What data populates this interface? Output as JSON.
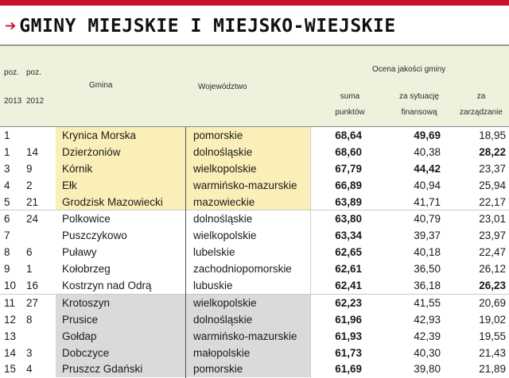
{
  "title": "GMINY MIEJSKIE I MIEJSKO-WIEJSKIE",
  "header": {
    "poz_a": "poz.",
    "poz_b": "poz.",
    "year_2013": "2013",
    "year_2012": "2012",
    "gmina": "Gmina",
    "wojewodztwo": "Województwo",
    "ocena": "Ocena jakości gminy",
    "suma_1": "suma",
    "suma_2": "punktów",
    "fin_1": "za sytuację",
    "fin_2": "finansową",
    "zarz_1": "za",
    "zarz_2": "zarządzanie"
  },
  "rows": [
    {
      "p13": "1",
      "p12": "",
      "gmina": "Krynica Morska",
      "woj": "pomorskie",
      "suma": "68,64",
      "fin": "49,69",
      "zarz": "18,95",
      "fin_bold": true,
      "zarz_bold": false,
      "band": "yellow"
    },
    {
      "p13": "1",
      "p12": "14",
      "gmina": "Dzierżoniów",
      "woj": "dolnośląskie",
      "suma": "68,60",
      "fin": "40,38",
      "zarz": "28,22",
      "fin_bold": false,
      "zarz_bold": true,
      "band": "yellow"
    },
    {
      "p13": "3",
      "p12": "9",
      "gmina": "Kórnik",
      "woj": "wielkopolskie",
      "suma": "67,79",
      "fin": "44,42",
      "zarz": "23,37",
      "fin_bold": true,
      "zarz_bold": false,
      "band": "yellow"
    },
    {
      "p13": "4",
      "p12": "2",
      "gmina": "Ełk",
      "woj": "warmińsko-mazurskie",
      "suma": "66,89",
      "fin": "40,94",
      "zarz": "25,94",
      "fin_bold": false,
      "zarz_bold": false,
      "band": "yellow"
    },
    {
      "p13": "5",
      "p12": "21",
      "gmina": "Grodzisk Mazowiecki",
      "woj": "mazowieckie",
      "suma": "63,89",
      "fin": "41,71",
      "zarz": "22,17",
      "fin_bold": false,
      "zarz_bold": false,
      "band": "yellow"
    },
    {
      "p13": "6",
      "p12": "24",
      "gmina": "Polkowice",
      "woj": "dolnośląskie",
      "suma": "63,80",
      "fin": "40,79",
      "zarz": "23,01",
      "fin_bold": false,
      "zarz_bold": false,
      "band": "white"
    },
    {
      "p13": "7",
      "p12": "",
      "gmina": "Puszczykowo",
      "woj": "wielkopolskie",
      "suma": "63,34",
      "fin": "39,37",
      "zarz": "23,97",
      "fin_bold": false,
      "zarz_bold": false,
      "band": "white"
    },
    {
      "p13": "8",
      "p12": "6",
      "gmina": "Puławy",
      "woj": "lubelskie",
      "suma": "62,65",
      "fin": "40,18",
      "zarz": "22,47",
      "fin_bold": false,
      "zarz_bold": false,
      "band": "white"
    },
    {
      "p13": "9",
      "p12": "1",
      "gmina": "Kołobrzeg",
      "woj": "zachodniopomorskie",
      "suma": "62,61",
      "fin": "36,50",
      "zarz": "26,12",
      "fin_bold": false,
      "zarz_bold": false,
      "band": "white"
    },
    {
      "p13": "10",
      "p12": "16",
      "gmina": "Kostrzyn nad Odrą",
      "woj": "lubuskie",
      "suma": "62,41",
      "fin": "36,18",
      "zarz": "26,23",
      "fin_bold": false,
      "zarz_bold": true,
      "band": "white"
    },
    {
      "p13": "11",
      "p12": "27",
      "gmina": "Krotoszyn",
      "woj": "wielkopolskie",
      "suma": "62,23",
      "fin": "41,55",
      "zarz": "20,69",
      "fin_bold": false,
      "zarz_bold": false,
      "band": "gray"
    },
    {
      "p13": "12",
      "p12": "8",
      "gmina": "Prusice",
      "woj": "dolnośląskie",
      "suma": "61,96",
      "fin": "42,93",
      "zarz": "19,02",
      "fin_bold": false,
      "zarz_bold": false,
      "band": "gray"
    },
    {
      "p13": "13",
      "p12": "",
      "gmina": "Gołdap",
      "woj": "warmińsko-mazurskie",
      "suma": "61,93",
      "fin": "42,39",
      "zarz": "19,55",
      "fin_bold": false,
      "zarz_bold": false,
      "band": "gray"
    },
    {
      "p13": "14",
      "p12": "3",
      "gmina": "Dobczyce",
      "woj": "małopolskie",
      "suma": "61,73",
      "fin": "40,30",
      "zarz": "21,43",
      "fin_bold": false,
      "zarz_bold": false,
      "band": "gray"
    },
    {
      "p13": "15",
      "p12": "4",
      "gmina": "Pruszcz Gdański",
      "woj": "pomorskie",
      "suma": "61,69",
      "fin": "39,80",
      "zarz": "21,89",
      "fin_bold": false,
      "zarz_bold": false,
      "band": "gray"
    }
  ],
  "colors": {
    "accent": "#c8102e",
    "header_bg": "#eef1dc",
    "top5": "#faefb8",
    "bottom5": "#dadada"
  }
}
